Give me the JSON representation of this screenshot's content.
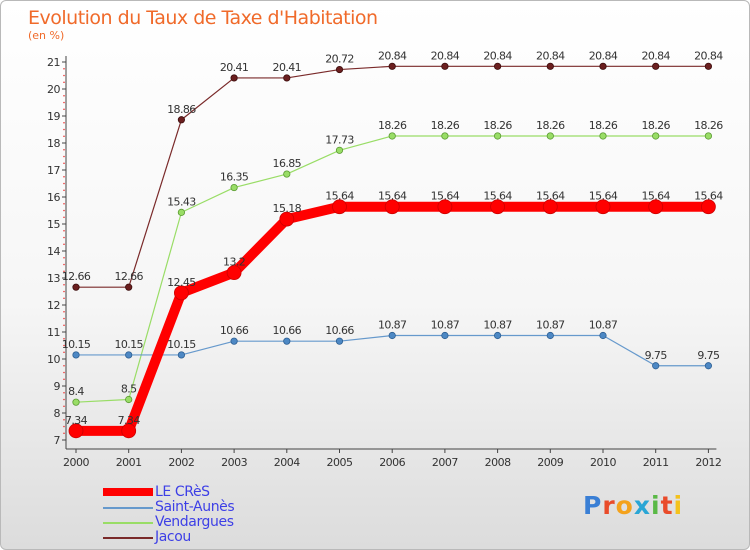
{
  "title": "Evolution du Taux de Taxe d'Habitation",
  "unit": "(en %)",
  "logo": {
    "text": "Proxiti",
    "letters": [
      "P",
      "r",
      "o",
      "x",
      "i",
      "t",
      "i"
    ],
    "colors": [
      "#3a7fd5",
      "#e94b2a",
      "#f4a21c",
      "#2aa6d5",
      "#5ab946",
      "#e94b2a",
      "#f4c21c"
    ]
  },
  "chart_data": {
    "type": "line",
    "title": "Evolution du Taux de Taxe d'Habitation",
    "ylabel": "(en %)",
    "xlabel": "",
    "x": [
      "2000",
      "2001",
      "2002",
      "2003",
      "2004",
      "2005",
      "2006",
      "2007",
      "2008",
      "2009",
      "2010",
      "2011",
      "2012"
    ],
    "ylim": [
      7,
      21
    ],
    "yticks": [
      "7",
      "8",
      "9",
      "10",
      "11",
      "12",
      "13",
      "14",
      "15",
      "16",
      "17",
      "18",
      "19",
      "20",
      "21"
    ],
    "grid": false,
    "legend_position": "bottom-left",
    "series": [
      {
        "name": "LE CRèS",
        "color": "#ff0000",
        "values": [
          7.34,
          7.34,
          12.45,
          13.2,
          15.18,
          15.64,
          15.64,
          15.64,
          15.64,
          15.64,
          15.64,
          15.64,
          15.64
        ],
        "labels": [
          "7.34",
          "7.34",
          "12.45",
          "13.2",
          "15.18",
          "15.64",
          "15.64",
          "15.64",
          "15.64",
          "15.64",
          "15.64",
          "15.64",
          "15.64"
        ]
      },
      {
        "name": "Saint-Aunès",
        "color": "#6699cc",
        "values": [
          10.15,
          10.15,
          10.15,
          10.66,
          10.66,
          10.66,
          10.87,
          10.87,
          10.87,
          10.87,
          10.87,
          9.75,
          9.75
        ],
        "labels": [
          "10.15",
          "10.15",
          "10.15",
          "10.66",
          "10.66",
          "10.66",
          "10.87",
          "10.87",
          "10.87",
          "10.87",
          "10.87",
          "9.75",
          "9.75"
        ]
      },
      {
        "name": "Vendargues",
        "color": "#99dd66",
        "values": [
          8.4,
          8.5,
          15.43,
          16.35,
          16.85,
          17.73,
          18.26,
          18.26,
          18.26,
          18.26,
          18.26,
          18.26,
          18.26
        ],
        "labels": [
          "8.4",
          "8.5",
          "15.43",
          "16.35",
          "16.85",
          "17.73",
          "18.26",
          "18.26",
          "18.26",
          "18.26",
          "18.26",
          "18.26",
          "18.26"
        ]
      },
      {
        "name": "Jacou",
        "color": "#7a2a2a",
        "values": [
          12.66,
          12.66,
          18.86,
          20.41,
          20.41,
          20.72,
          20.84,
          20.84,
          20.84,
          20.84,
          20.84,
          20.84,
          20.84
        ],
        "labels": [
          "12.66",
          "12.66",
          "18.86",
          "20.41",
          "20.41",
          "20.72",
          "20.84",
          "20.84",
          "20.84",
          "20.84",
          "20.84",
          "20.84",
          "20.84"
        ]
      }
    ]
  }
}
